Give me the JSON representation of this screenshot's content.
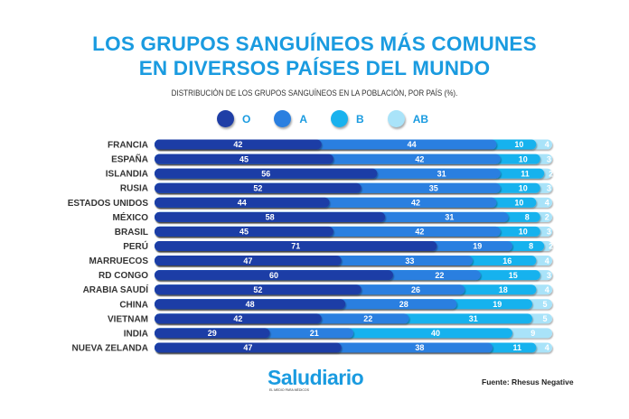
{
  "chart_data": {
    "type": "bar",
    "orientation": "horizontal",
    "stacked": true,
    "title": "LOS GRUPOS SANGUÍNEOS MÁS COMUNES EN DIVERSOS PAÍSES DEL MUNDO",
    "title_lines": [
      "LOS GRUPOS SANGUÍNEOS MÁS COMUNES",
      "EN DIVERSOS PAÍSES DEL MUNDO"
    ],
    "subtitle": "DISTRIBUCIÓN DE LOS GRUPOS SANGUÍNEOS EN LA POBLACIÓN, POR PAÍS (%).",
    "legend_placement": "top",
    "categories": [
      "FRANCIA",
      "ESPAÑA",
      "ISLANDIA",
      "RUSIA",
      "ESTADOS UNIDOS",
      "MÉXICO",
      "BRASIL",
      "PERÚ",
      "MARRUECOS",
      "RD CONGO",
      "ARABIA SAUDÍ",
      "CHINA",
      "VIETNAM",
      "INDIA",
      "NUEVA ZELANDA"
    ],
    "series": [
      {
        "name": "O",
        "color": "#1f3ea6",
        "values": [
          42,
          45,
          56,
          52,
          44,
          58,
          45,
          71,
          47,
          60,
          52,
          48,
          42,
          29,
          47
        ]
      },
      {
        "name": "A",
        "color": "#2a7fe0",
        "values": [
          44,
          42,
          31,
          35,
          42,
          31,
          42,
          19,
          33,
          22,
          26,
          28,
          22,
          21,
          38
        ]
      },
      {
        "name": "B",
        "color": "#19b2ee",
        "values": [
          10,
          10,
          11,
          10,
          10,
          8,
          10,
          8,
          16,
          15,
          18,
          19,
          31,
          40,
          11
        ]
      },
      {
        "name": "AB",
        "color": "#a9e3f9",
        "values": [
          4,
          3,
          2,
          3,
          4,
          2,
          3,
          2,
          4,
          3,
          4,
          5,
          5,
          9,
          4
        ]
      }
    ],
    "xlim": [
      0,
      100
    ],
    "grid": false
  },
  "footer": {
    "logo": "Saludiario",
    "logo_tagline": "EL MEDIO PARA MÉDICOS",
    "source": "Fuente: Rhesus Negative"
  }
}
